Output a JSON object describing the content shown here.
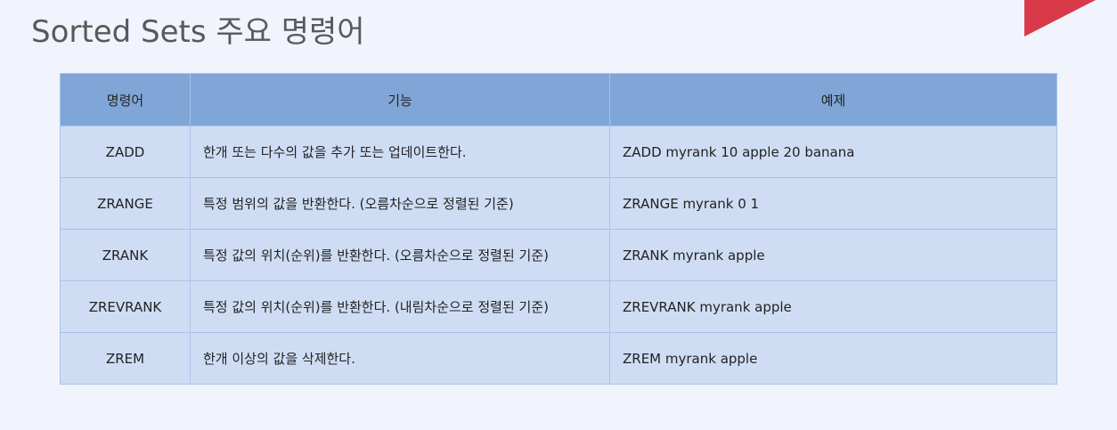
{
  "slide": {
    "title": "Sorted Sets 주요 명령어",
    "accent_color": "#d93a4a"
  },
  "table": {
    "headers": {
      "command": "명령어",
      "function": "기능",
      "example": "예제"
    },
    "rows": [
      {
        "command": "ZADD",
        "function": "한개 또는 다수의 값을 추가 또는 업데이트한다.",
        "example": "ZADD myrank 10 apple 20 banana"
      },
      {
        "command": "ZRANGE",
        "function": "특정 범위의 값을 반환한다. (오름차순으로 정렬된 기준)",
        "example": "ZRANGE myrank 0 1"
      },
      {
        "command": "ZRANK",
        "function": "특정 값의 위치(순위)를 반환한다. (오름차순으로 정렬된 기준)",
        "example": "ZRANK myrank apple"
      },
      {
        "command": "ZREVRANK",
        "function": "특정 값의 위치(순위)를 반환한다. (내림차순으로 정렬된 기준)",
        "example": "ZREVRANK myrank apple"
      },
      {
        "command": "ZREM",
        "function": "한개 이상의 값을 삭제한다.",
        "example": "ZREM myrank apple"
      }
    ]
  }
}
